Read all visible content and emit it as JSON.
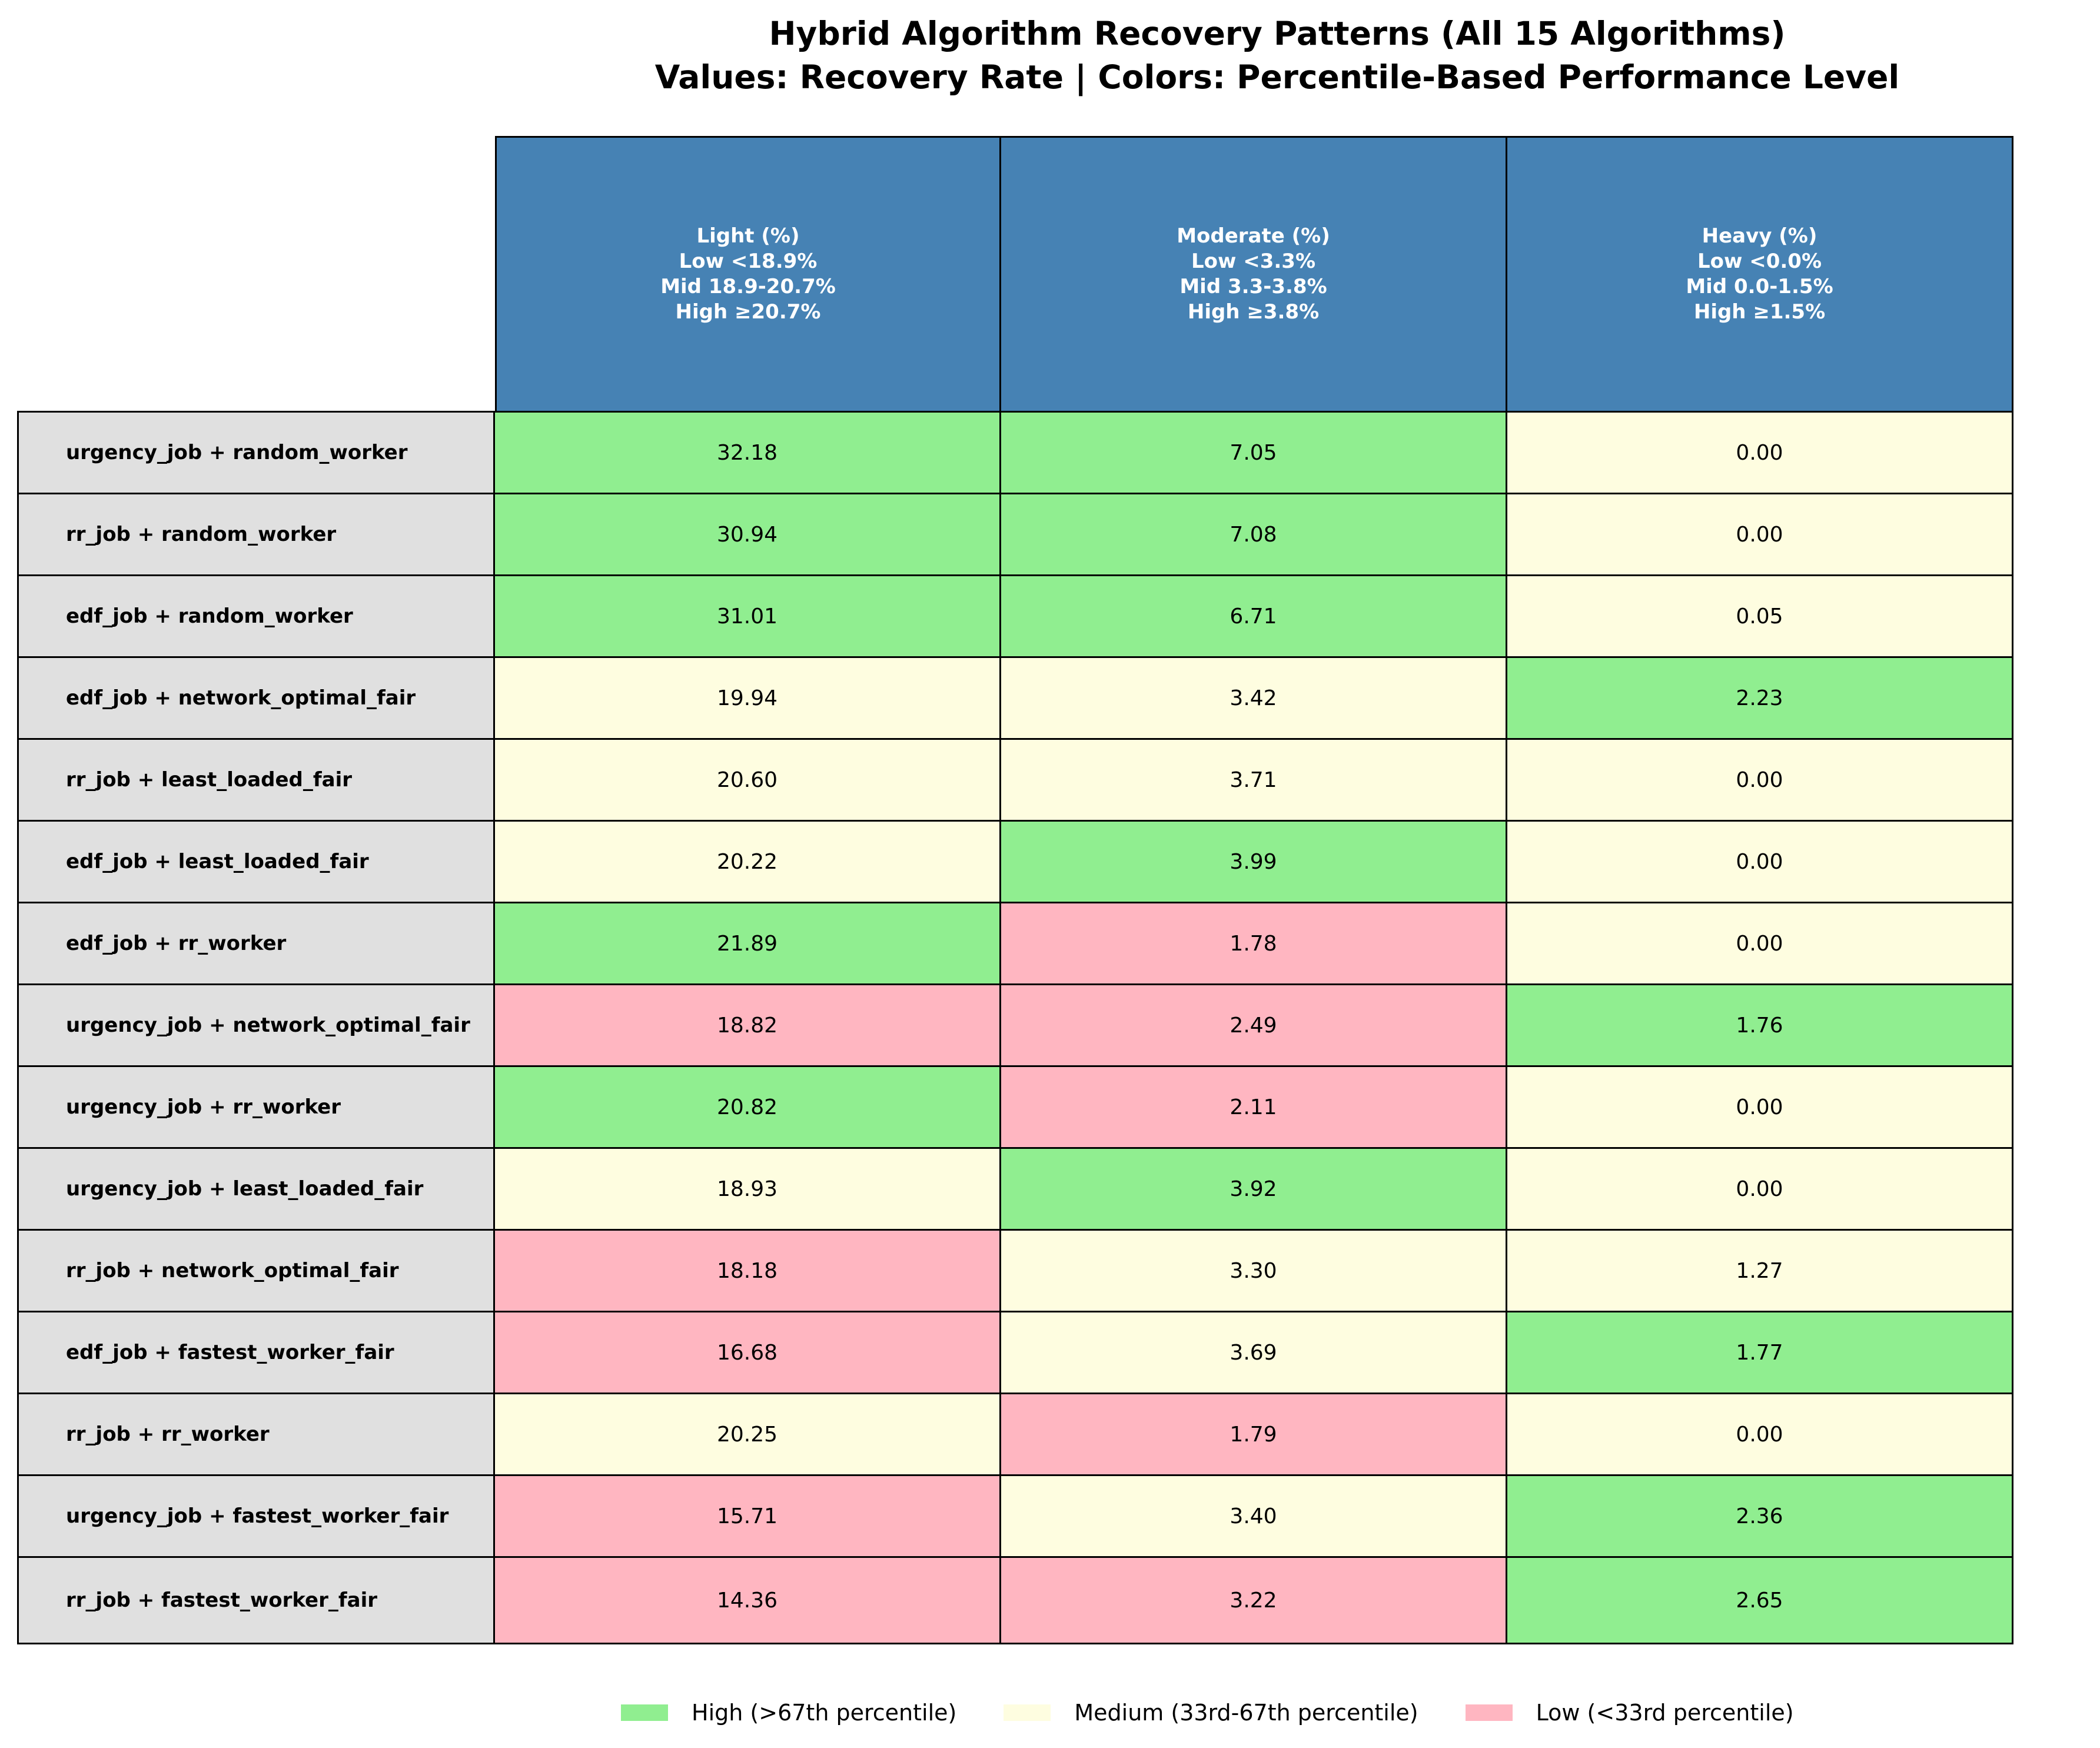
{
  "chart_data": {
    "type": "table",
    "title": [
      "Hybrid Algorithm Recovery Patterns (All 15 Algorithms)",
      "Values: Recovery Rate | Colors: Percentile-Based Performance Level"
    ],
    "columns": [
      {
        "lines": [
          "Light (%)",
          "Low <18.9%",
          "Mid 18.9-20.7%",
          "High ≥20.7%"
        ]
      },
      {
        "lines": [
          "Moderate (%)",
          "Low <3.3%",
          "Mid 3.3-3.8%",
          "High ≥3.8%"
        ]
      },
      {
        "lines": [
          "Heavy (%)",
          "Low <0.0%",
          "Mid 0.0-1.5%",
          "High ≥1.5%"
        ]
      }
    ],
    "rows": [
      {
        "label": "urgency_job + random_worker",
        "values": [
          "32.18",
          "7.05",
          "0.00"
        ],
        "levels": [
          "high",
          "high",
          "medium"
        ]
      },
      {
        "label": "rr_job + random_worker",
        "values": [
          "30.94",
          "7.08",
          "0.00"
        ],
        "levels": [
          "high",
          "high",
          "medium"
        ]
      },
      {
        "label": "edf_job + random_worker",
        "values": [
          "31.01",
          "6.71",
          "0.05"
        ],
        "levels": [
          "high",
          "high",
          "medium"
        ]
      },
      {
        "label": "edf_job + network_optimal_fair",
        "values": [
          "19.94",
          "3.42",
          "2.23"
        ],
        "levels": [
          "medium",
          "medium",
          "high"
        ]
      },
      {
        "label": "rr_job + least_loaded_fair",
        "values": [
          "20.60",
          "3.71",
          "0.00"
        ],
        "levels": [
          "medium",
          "medium",
          "medium"
        ]
      },
      {
        "label": "edf_job + least_loaded_fair",
        "values": [
          "20.22",
          "3.99",
          "0.00"
        ],
        "levels": [
          "medium",
          "high",
          "medium"
        ]
      },
      {
        "label": "edf_job + rr_worker",
        "values": [
          "21.89",
          "1.78",
          "0.00"
        ],
        "levels": [
          "high",
          "low",
          "medium"
        ]
      },
      {
        "label": "urgency_job + network_optimal_fair",
        "values": [
          "18.82",
          "2.49",
          "1.76"
        ],
        "levels": [
          "low",
          "low",
          "high"
        ]
      },
      {
        "label": "urgency_job + rr_worker",
        "values": [
          "20.82",
          "2.11",
          "0.00"
        ],
        "levels": [
          "high",
          "low",
          "medium"
        ]
      },
      {
        "label": "urgency_job + least_loaded_fair",
        "values": [
          "18.93",
          "3.92",
          "0.00"
        ],
        "levels": [
          "medium",
          "high",
          "medium"
        ]
      },
      {
        "label": "rr_job + network_optimal_fair",
        "values": [
          "18.18",
          "3.30",
          "1.27"
        ],
        "levels": [
          "low",
          "medium",
          "medium"
        ]
      },
      {
        "label": "edf_job + fastest_worker_fair",
        "values": [
          "16.68",
          "3.69",
          "1.77"
        ],
        "levels": [
          "low",
          "medium",
          "high"
        ]
      },
      {
        "label": "rr_job + rr_worker",
        "values": [
          "20.25",
          "1.79",
          "0.00"
        ],
        "levels": [
          "medium",
          "low",
          "medium"
        ]
      },
      {
        "label": "urgency_job + fastest_worker_fair",
        "values": [
          "15.71",
          "3.40",
          "2.36"
        ],
        "levels": [
          "low",
          "medium",
          "high"
        ]
      },
      {
        "label": "rr_job + fastest_worker_fair",
        "values": [
          "14.36",
          "3.22",
          "2.65"
        ],
        "levels": [
          "low",
          "low",
          "high"
        ]
      }
    ],
    "legend": [
      {
        "level": "high",
        "label": "High (>67th percentile)",
        "color": "#90ee90"
      },
      {
        "level": "medium",
        "label": "Medium (33rd-67th percentile)",
        "color": "#fefde0"
      },
      {
        "level": "low",
        "label": "Low (<33rd percentile)",
        "color": "#ffb6c1"
      }
    ],
    "colors": {
      "header": "#4682b4",
      "row_label": "#e0e0e0"
    }
  }
}
